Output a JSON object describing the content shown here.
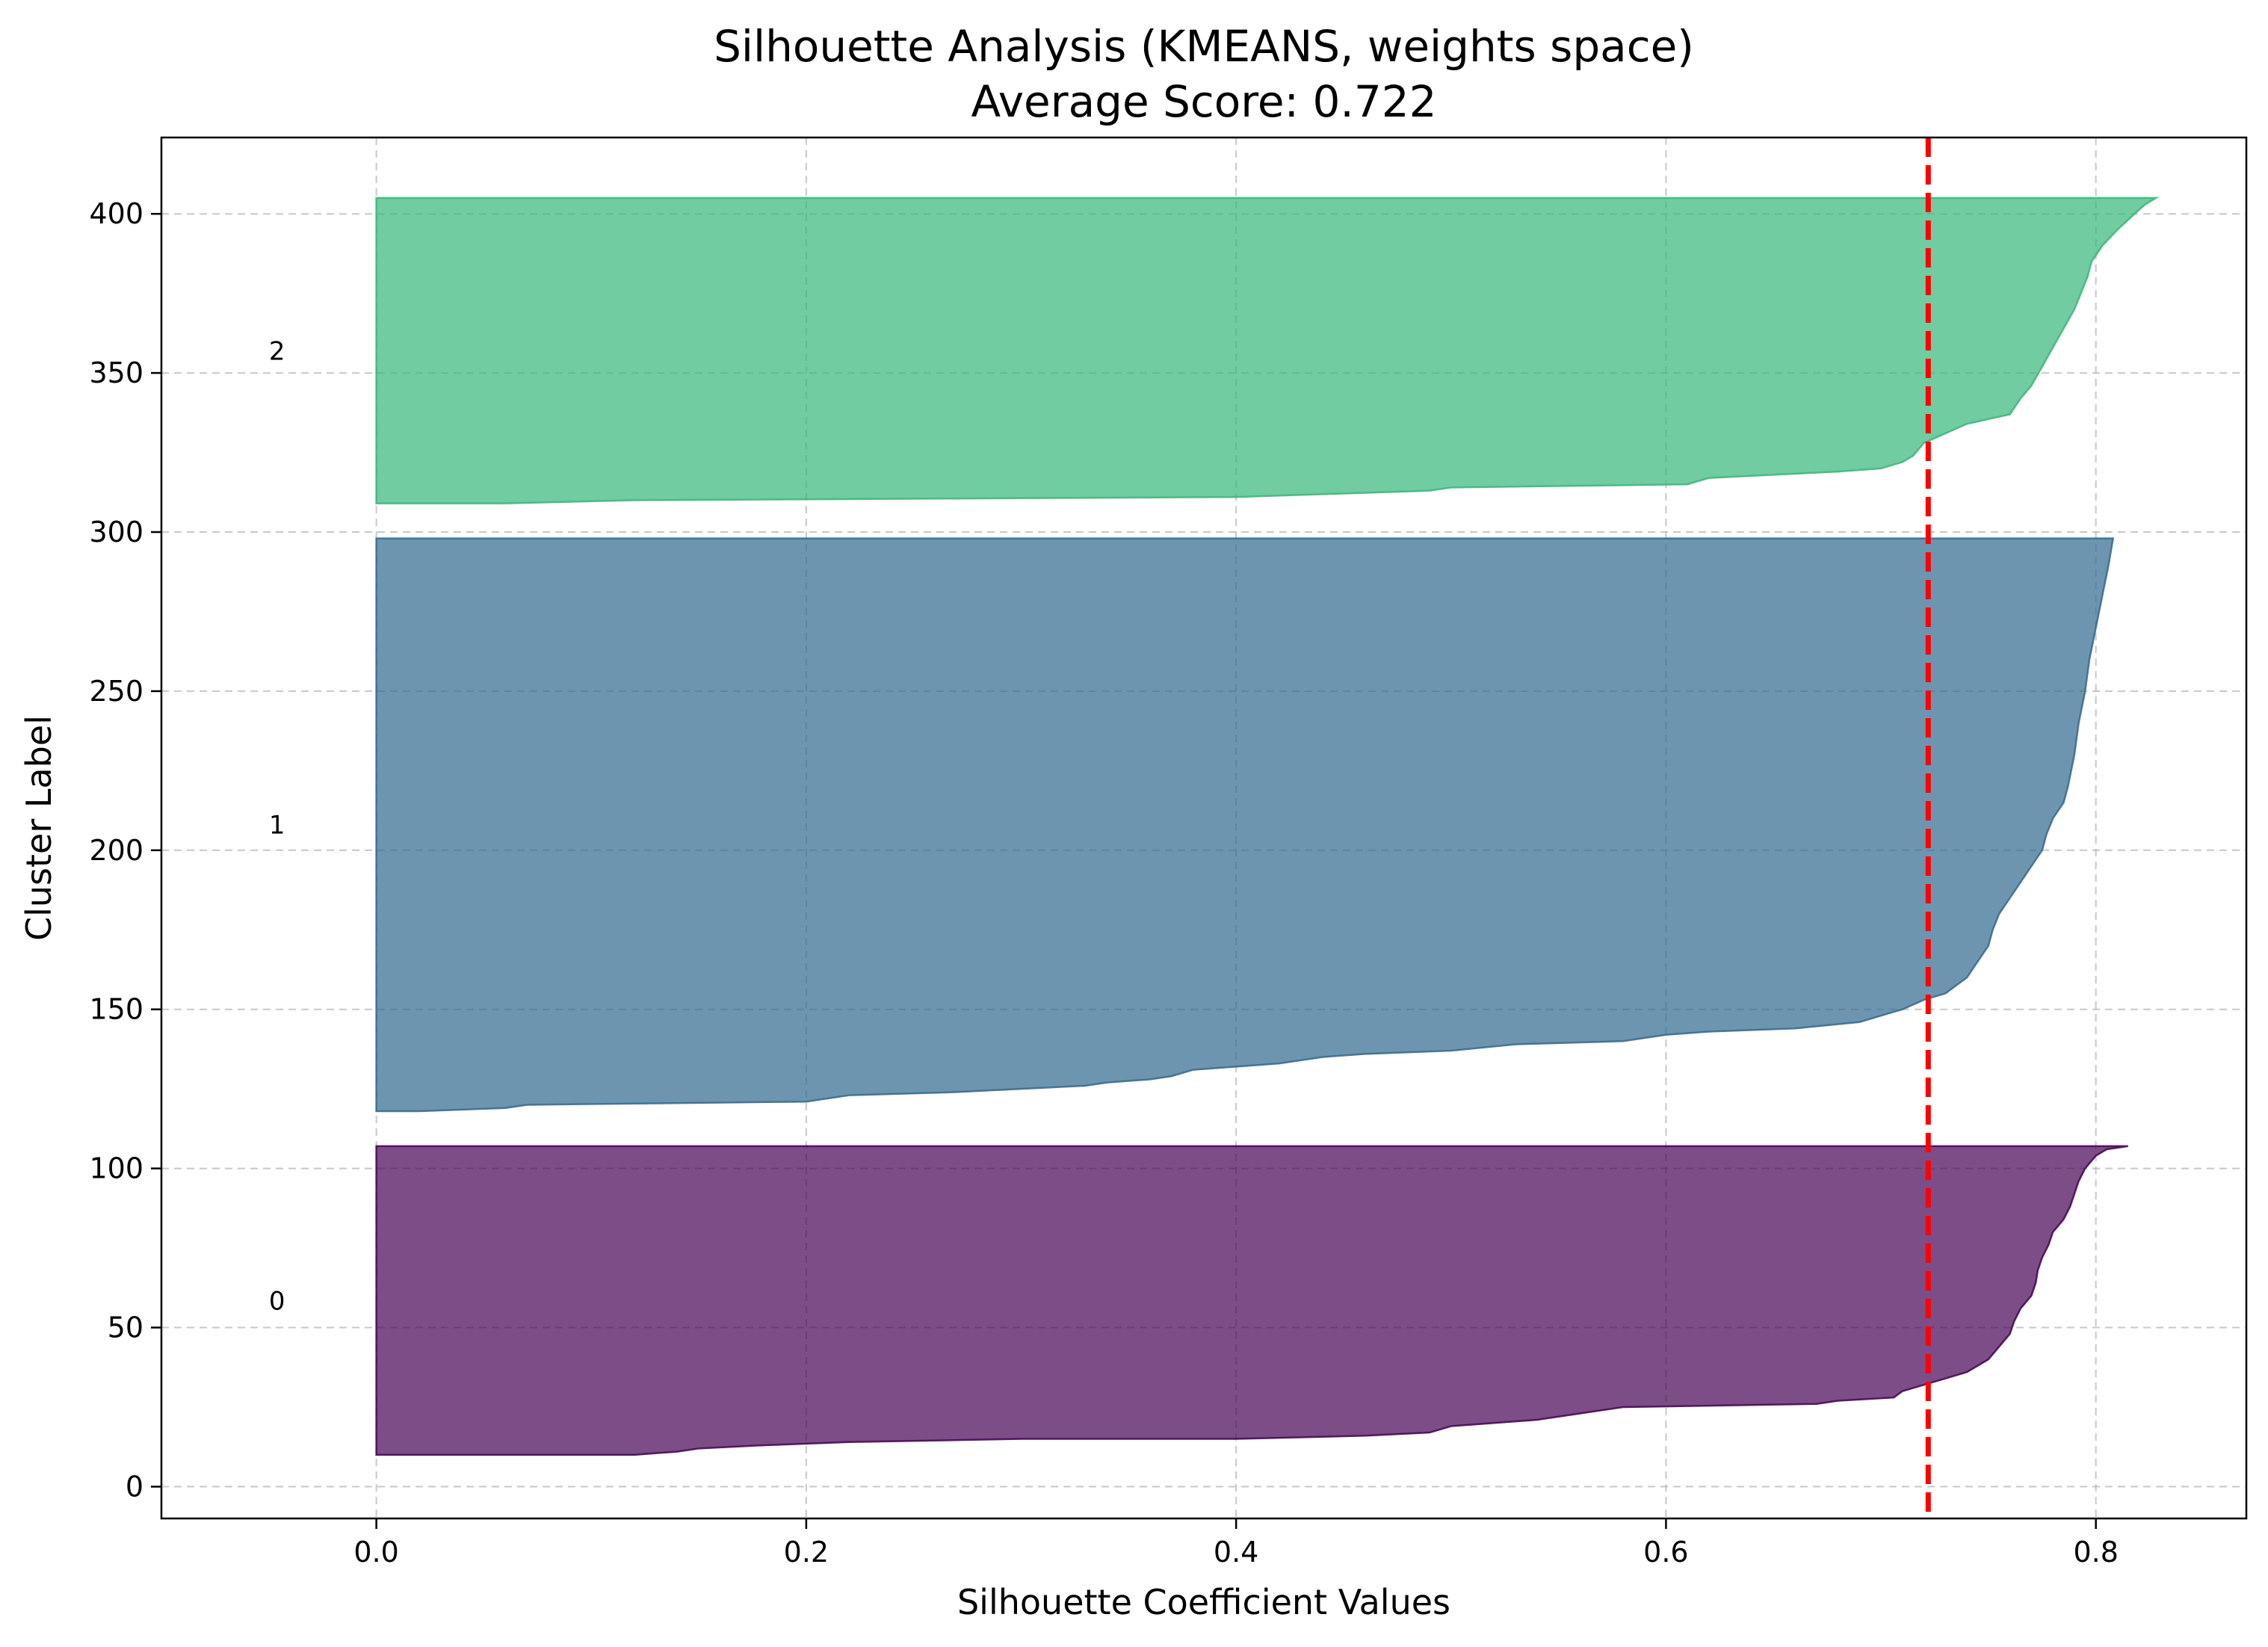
{
  "chart_data": {
    "type": "area",
    "title_line1": "Silhouette Analysis (KMEANS, weights space)",
    "title_line2": "Average Score: 0.722",
    "xlabel": "Silhouette Coefficient Values",
    "ylabel": "Cluster Label",
    "xlim": [
      -0.1,
      0.87
    ],
    "ylim": [
      -10,
      424
    ],
    "x_ticks": [
      0.0,
      0.2,
      0.4,
      0.6,
      0.8
    ],
    "x_tick_labels": [
      "0.0",
      "0.2",
      "0.4",
      "0.6",
      "0.8"
    ],
    "y_ticks": [
      0,
      50,
      100,
      150,
      200,
      250,
      300,
      350,
      400
    ],
    "y_tick_labels": [
      "0",
      "50",
      "100",
      "150",
      "200",
      "250",
      "300",
      "350",
      "400"
    ],
    "grid": true,
    "average_score": 0.722,
    "average_line_color": "#ff0000",
    "clusters": [
      {
        "label": "0",
        "color": "#440154",
        "y_lower": 10,
        "y_upper": 107,
        "profile": [
          [
            10,
            0.0
          ],
          [
            10,
            0.12
          ],
          [
            11,
            0.14
          ],
          [
            12,
            0.15
          ],
          [
            13,
            0.18
          ],
          [
            14,
            0.22
          ],
          [
            15,
            0.3
          ],
          [
            15,
            0.4
          ],
          [
            16,
            0.46
          ],
          [
            17,
            0.49
          ],
          [
            19,
            0.5
          ],
          [
            21,
            0.54
          ],
          [
            23,
            0.56
          ],
          [
            25,
            0.58
          ],
          [
            26,
            0.67
          ],
          [
            27,
            0.68
          ],
          [
            28,
            0.706
          ],
          [
            30,
            0.71
          ],
          [
            32,
            0.72
          ],
          [
            34,
            0.73
          ],
          [
            36,
            0.74
          ],
          [
            38,
            0.745
          ],
          [
            40,
            0.75
          ],
          [
            44,
            0.755
          ],
          [
            48,
            0.76
          ],
          [
            52,
            0.762
          ],
          [
            56,
            0.765
          ],
          [
            60,
            0.77
          ],
          [
            64,
            0.772
          ],
          [
            68,
            0.773
          ],
          [
            72,
            0.775
          ],
          [
            76,
            0.778
          ],
          [
            80,
            0.78
          ],
          [
            84,
            0.785
          ],
          [
            88,
            0.788
          ],
          [
            92,
            0.79
          ],
          [
            96,
            0.792
          ],
          [
            100,
            0.795
          ],
          [
            104,
            0.8
          ],
          [
            106,
            0.805
          ],
          [
            107,
            0.815
          ]
        ]
      },
      {
        "label": "1",
        "color": "#31688e",
        "y_lower": 118,
        "y_upper": 298,
        "profile": [
          [
            118,
            0.0
          ],
          [
            118,
            0.02
          ],
          [
            119,
            0.06
          ],
          [
            120,
            0.07
          ],
          [
            121,
            0.2
          ],
          [
            123,
            0.22
          ],
          [
            124,
            0.27
          ],
          [
            125,
            0.3
          ],
          [
            126,
            0.33
          ],
          [
            127,
            0.34
          ],
          [
            128,
            0.36
          ],
          [
            129,
            0.37
          ],
          [
            131,
            0.38
          ],
          [
            132,
            0.4
          ],
          [
            133,
            0.42
          ],
          [
            135,
            0.44
          ],
          [
            136,
            0.46
          ],
          [
            137,
            0.5
          ],
          [
            139,
            0.53
          ],
          [
            140,
            0.58
          ],
          [
            142,
            0.6
          ],
          [
            143,
            0.62
          ],
          [
            144,
            0.66
          ],
          [
            146,
            0.69
          ],
          [
            148,
            0.7
          ],
          [
            150,
            0.71
          ],
          [
            153,
            0.72
          ],
          [
            155,
            0.73
          ],
          [
            160,
            0.74
          ],
          [
            165,
            0.745
          ],
          [
            170,
            0.75
          ],
          [
            175,
            0.752
          ],
          [
            180,
            0.755
          ],
          [
            185,
            0.76
          ],
          [
            190,
            0.765
          ],
          [
            195,
            0.77
          ],
          [
            200,
            0.775
          ],
          [
            205,
            0.777
          ],
          [
            210,
            0.78
          ],
          [
            215,
            0.785
          ],
          [
            220,
            0.787
          ],
          [
            230,
            0.79
          ],
          [
            240,
            0.792
          ],
          [
            250,
            0.795
          ],
          [
            260,
            0.797
          ],
          [
            270,
            0.8
          ],
          [
            280,
            0.803
          ],
          [
            290,
            0.806
          ],
          [
            298,
            0.808
          ]
        ]
      },
      {
        "label": "2",
        "color": "#35b779",
        "y_lower": 309,
        "y_upper": 405,
        "profile": [
          [
            309,
            0.0
          ],
          [
            309,
            0.06
          ],
          [
            310,
            0.12
          ],
          [
            311,
            0.4
          ],
          [
            313,
            0.49
          ],
          [
            314,
            0.5
          ],
          [
            315,
            0.61
          ],
          [
            317,
            0.62
          ],
          [
            319,
            0.68
          ],
          [
            320,
            0.7
          ],
          [
            322,
            0.71
          ],
          [
            324,
            0.715
          ],
          [
            328,
            0.72
          ],
          [
            331,
            0.73
          ],
          [
            334,
            0.74
          ],
          [
            337,
            0.76
          ],
          [
            342,
            0.765
          ],
          [
            346,
            0.77
          ],
          [
            352,
            0.775
          ],
          [
            358,
            0.78
          ],
          [
            364,
            0.785
          ],
          [
            370,
            0.79
          ],
          [
            375,
            0.793
          ],
          [
            380,
            0.796
          ],
          [
            385,
            0.798
          ],
          [
            390,
            0.803
          ],
          [
            395,
            0.81
          ],
          [
            400,
            0.818
          ],
          [
            403,
            0.823
          ],
          [
            405,
            0.828
          ]
        ]
      }
    ]
  }
}
